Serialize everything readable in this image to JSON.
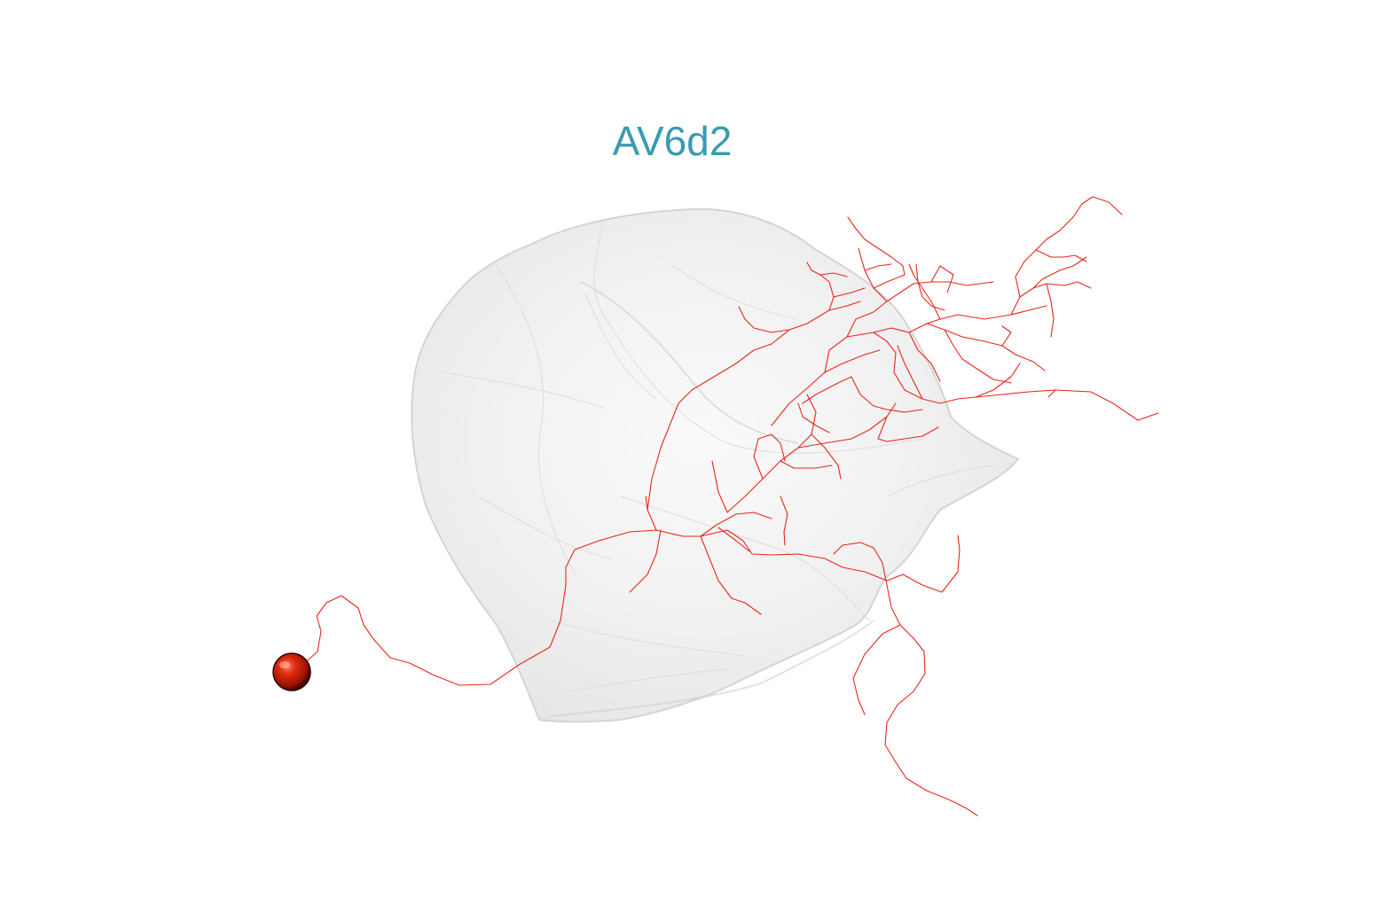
{
  "scene": {
    "title": "AV6d2",
    "colors": {
      "title": "#3a9bb0",
      "neuron": "#e8261a",
      "mesh_fill": "#e9e9e9",
      "mesh_edge": "#d6d6d6",
      "background": "#ffffff",
      "soma": "#cc1800"
    },
    "objects": [
      {
        "name": "neuropil-mesh",
        "kind": "translucent surface mesh"
      },
      {
        "name": "neuron-skeleton",
        "kind": "branching line skeleton"
      },
      {
        "name": "soma-sphere",
        "kind": "sphere"
      }
    ]
  }
}
